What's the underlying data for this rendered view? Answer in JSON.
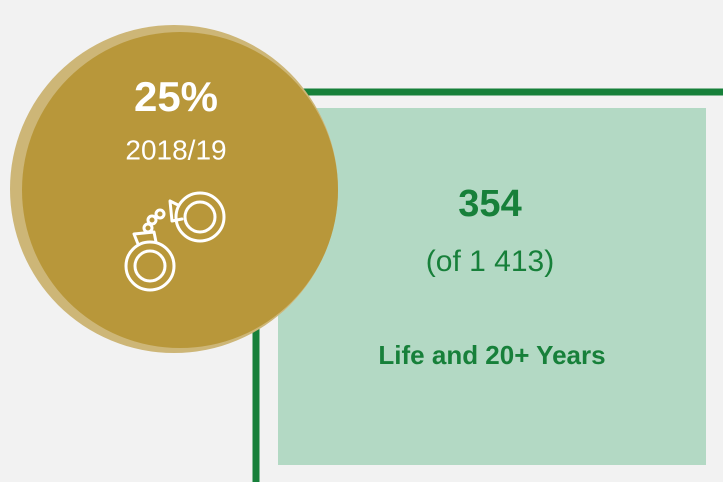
{
  "circle": {
    "value": "25%",
    "period": "2018/19"
  },
  "box": {
    "value": "354",
    "total": "(of 1 413)",
    "label": "Life and 20+ Years"
  }
}
